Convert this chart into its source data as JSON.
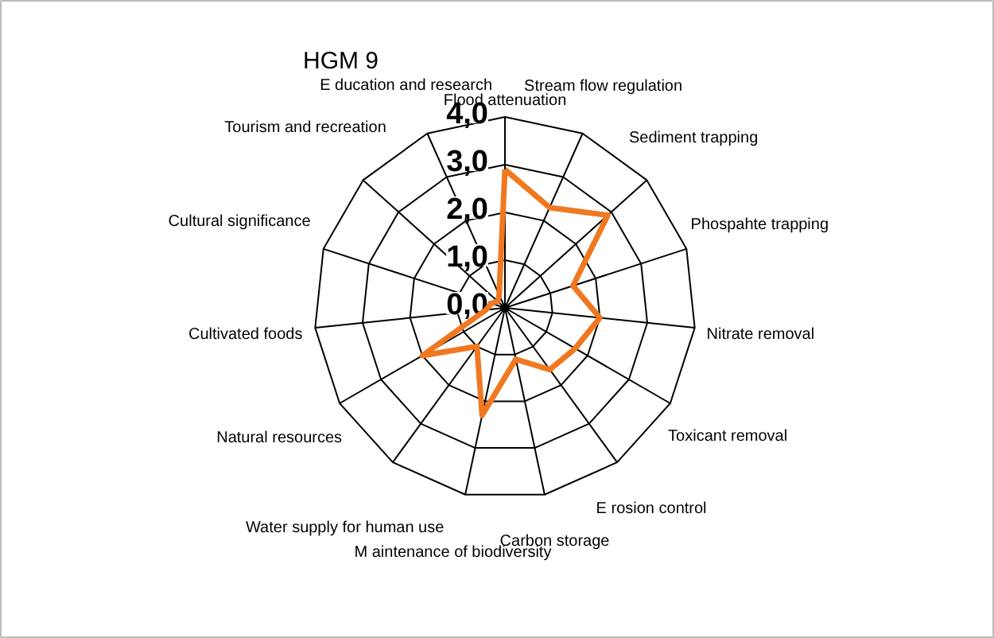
{
  "chart_data": {
    "type": "radar",
    "title": "HGM 9",
    "categories": [
      "Flood attenuation",
      "Stream flow regulation",
      "Sediment trapping",
      "Phospahte trapping",
      "Nitrate removal",
      "Toxicant removal",
      "E rosion control",
      "Carbon storage",
      "M aintenance of biodiversity",
      "Water supply for human use",
      "Natural resources",
      "Cultivated foods",
      "Cultural significance",
      "Tourism and recreation",
      "E ducation and research"
    ],
    "series": [
      {
        "color": "#f07820",
        "values": [
          2.9,
          2.3,
          2.9,
          1.5,
          2.0,
          1.7,
          1.6,
          1.1,
          2.3,
          1.0,
          2.0,
          0.4,
          0.3,
          0.2,
          0.3
        ]
      }
    ],
    "ylim": [
      0,
      4
    ],
    "yticks": [
      {
        "value": 0,
        "label": "0,0"
      },
      {
        "value": 1,
        "label": "1,0"
      },
      {
        "value": 2,
        "label": "2,0"
      },
      {
        "value": 3,
        "label": "3,0"
      },
      {
        "value": 4,
        "label": "4,0"
      }
    ]
  }
}
